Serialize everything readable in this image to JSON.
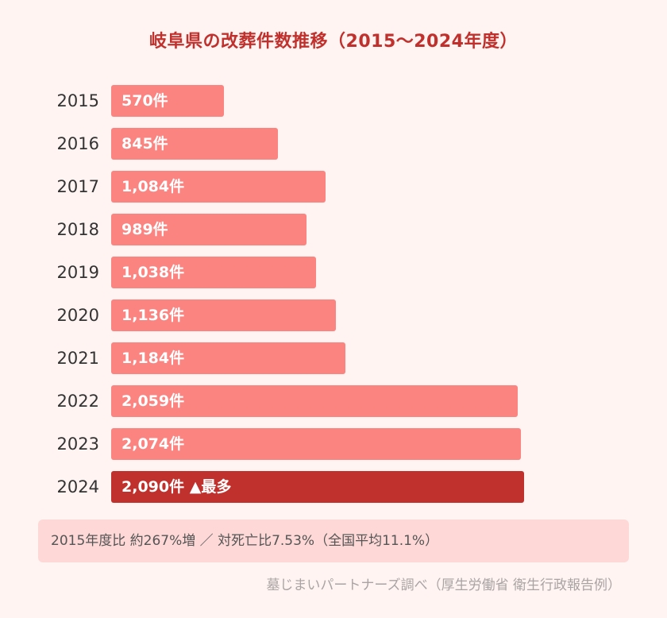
{
  "chart_data": {
    "type": "bar",
    "orientation": "horizontal",
    "title": "岐阜県の改葬件数推移（2015～2024年度）",
    "categories": [
      "2015",
      "2016",
      "2017",
      "2018",
      "2019",
      "2020",
      "2021",
      "2022",
      "2023",
      "2024"
    ],
    "values": [
      570,
      845,
      1084,
      989,
      1038,
      1136,
      1184,
      2059,
      2074,
      2090
    ],
    "value_labels": [
      "570件",
      "845件",
      "1,084件",
      "989件",
      "1,038件",
      "1,136件",
      "1,184件",
      "2,059件",
      "2,074件",
      "2,090件"
    ],
    "highlight_index": 9,
    "highlight_suffix": "▲最多",
    "xlabel": "",
    "ylabel": "",
    "xlim": [
      0,
      2090
    ],
    "grid": false,
    "colors": {
      "bar": "#fb8380",
      "highlight": "#c0302c",
      "title": "#c0302c"
    }
  },
  "note": "2015年度比 約267%増 ／ 対死亡比7.53%（全国平均11.1%）",
  "source": "墓じまいパートナーズ調べ（厚生労働省 衛生行政報告例）"
}
